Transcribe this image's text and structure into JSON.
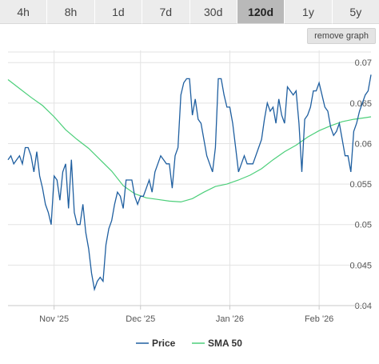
{
  "range_tabs": [
    "4h",
    "8h",
    "1d",
    "7d",
    "30d",
    "120d",
    "1y",
    "5y"
  ],
  "active_tab": "120d",
  "remove_graph_label": "remove graph",
  "colors": {
    "price": "#1f5fa0",
    "sma": "#4ccf7a",
    "grid": "#e3e3e3",
    "axis": "#c8c8c8"
  },
  "chart_data": {
    "type": "line",
    "title": "",
    "xlabel": "",
    "ylabel": "",
    "x_tick_labels": [
      "Nov '25",
      "Dec '25",
      "Jan '26",
      "Feb '26"
    ],
    "x_tick_days": [
      16,
      46,
      77,
      108
    ],
    "y_ticks": [
      0.04,
      0.045,
      0.05,
      0.055,
      0.06,
      0.065,
      0.07
    ],
    "ylim": [
      0.04,
      0.0715
    ],
    "xlim": [
      0,
      126
    ],
    "grid": true,
    "legend_position": "bottom-center",
    "series": [
      {
        "name": "Price",
        "x": [
          0,
          1,
          2,
          3,
          4,
          5,
          6,
          7,
          8,
          9,
          10,
          11,
          12,
          13,
          14,
          15,
          16,
          17,
          18,
          19,
          20,
          21,
          22,
          23,
          24,
          25,
          26,
          27,
          28,
          29,
          30,
          31,
          32,
          33,
          34,
          35,
          36,
          37,
          38,
          39,
          40,
          41,
          42,
          43,
          44,
          45,
          46,
          47,
          48,
          49,
          50,
          51,
          52,
          53,
          54,
          55,
          56,
          57,
          58,
          59,
          60,
          61,
          62,
          63,
          64,
          65,
          66,
          67,
          68,
          69,
          70,
          71,
          72,
          73,
          74,
          75,
          76,
          77,
          78,
          79,
          80,
          81,
          82,
          83,
          84,
          85,
          86,
          87,
          88,
          89,
          90,
          91,
          92,
          93,
          94,
          95,
          96,
          97,
          98,
          99,
          100,
          101,
          102,
          103,
          104,
          105,
          106,
          107,
          108,
          109,
          110,
          111,
          112,
          113,
          114,
          115,
          116,
          117,
          118,
          119,
          120,
          121,
          122,
          123,
          124,
          125,
          126
        ],
        "values": [
          0.058,
          0.0585,
          0.0575,
          0.058,
          0.0585,
          0.0575,
          0.0595,
          0.0595,
          0.0585,
          0.0565,
          0.059,
          0.056,
          0.0545,
          0.0525,
          0.0515,
          0.05,
          0.056,
          0.0555,
          0.053,
          0.0565,
          0.0575,
          0.052,
          0.058,
          0.0515,
          0.05,
          0.05,
          0.0525,
          0.049,
          0.047,
          0.044,
          0.042,
          0.043,
          0.0435,
          0.043,
          0.0475,
          0.0495,
          0.0505,
          0.0525,
          0.054,
          0.0535,
          0.052,
          0.0555,
          0.0555,
          0.0555,
          0.0535,
          0.0525,
          0.0535,
          0.0535,
          0.0545,
          0.0555,
          0.054,
          0.0565,
          0.0575,
          0.0585,
          0.058,
          0.0575,
          0.0575,
          0.0545,
          0.0585,
          0.0595,
          0.066,
          0.0675,
          0.068,
          0.068,
          0.0635,
          0.0655,
          0.063,
          0.0625,
          0.0605,
          0.0585,
          0.0575,
          0.0565,
          0.0595,
          0.068,
          0.068,
          0.066,
          0.0645,
          0.0645,
          0.0625,
          0.0595,
          0.0565,
          0.0575,
          0.0585,
          0.0575,
          0.0575,
          0.0575,
          0.0585,
          0.0595,
          0.0605,
          0.063,
          0.065,
          0.064,
          0.0645,
          0.0625,
          0.0655,
          0.0635,
          0.0625,
          0.067,
          0.0665,
          0.066,
          0.0665,
          0.0625,
          0.0565,
          0.063,
          0.0635,
          0.0645,
          0.0665,
          0.0665,
          0.0675,
          0.066,
          0.0645,
          0.064,
          0.062,
          0.061,
          0.0615,
          0.0625,
          0.0605,
          0.0585,
          0.0585,
          0.0565,
          0.0615,
          0.0625,
          0.064,
          0.065,
          0.066,
          0.0665,
          0.0685
        ],
        "note_shape": "approximate daily closes read from chart"
      },
      {
        "name": "SMA 50",
        "x": [
          0,
          4,
          8,
          12,
          16,
          20,
          24,
          28,
          32,
          36,
          40,
          44,
          48,
          52,
          56,
          60,
          64,
          68,
          72,
          76,
          80,
          84,
          88,
          92,
          96,
          100,
          104,
          108,
          112,
          116,
          120,
          124,
          126
        ],
        "values": [
          0.0679,
          0.0668,
          0.0657,
          0.0647,
          0.0633,
          0.0617,
          0.0605,
          0.0594,
          0.058,
          0.0566,
          0.0548,
          0.0538,
          0.0533,
          0.0531,
          0.0529,
          0.0528,
          0.0532,
          0.054,
          0.0547,
          0.055,
          0.0555,
          0.0561,
          0.0569,
          0.058,
          0.059,
          0.0598,
          0.0608,
          0.0616,
          0.0622,
          0.0627,
          0.063,
          0.0632,
          0.0633
        ]
      }
    ]
  }
}
